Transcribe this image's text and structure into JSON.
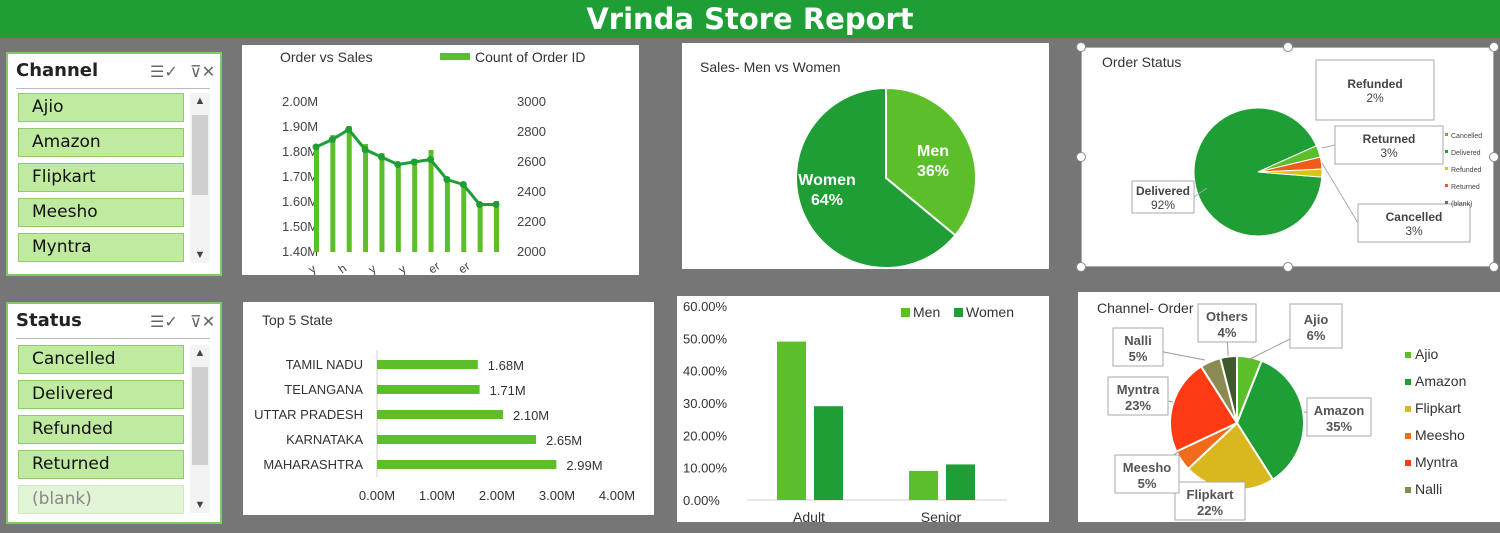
{
  "title": "Vrinda Store Report",
  "channel_slicer": {
    "heading": "Channel",
    "items": [
      "Ajio",
      "Amazon",
      "Flipkart",
      "Meesho",
      "Myntra"
    ]
  },
  "status_slicer": {
    "heading": "Status",
    "items": [
      "Cancelled",
      "Delivered",
      "Refunded",
      "Returned",
      "(blank)"
    ]
  },
  "icons": [
    "multi-select-icon",
    "clear-filter-icon",
    "scroll-up-icon",
    "scroll-down-icon"
  ],
  "colors": {
    "header": "#1e9e34",
    "light_green": "#5cbf2a",
    "dark_green": "#1e9e34",
    "background": "#767676"
  },
  "chart_data": [
    {
      "id": "order_vs_sales",
      "type": "line",
      "title": "Order vs Sales",
      "legend": "Count of Order ID",
      "y_left_ticks": [
        "2.00M",
        "1.90M",
        "1.80M",
        "1.70M",
        "1.60M",
        "1.50M",
        "1.40M"
      ],
      "y_right_ticks": [
        "3000",
        "2800",
        "2600",
        "2400",
        "2200",
        "2000"
      ],
      "x_tick_fragments": [
        "y",
        "h",
        "y",
        "y",
        "er",
        "er"
      ],
      "sales_m": [
        1.82,
        1.85,
        1.89,
        1.81,
        1.78,
        1.75,
        1.76,
        1.77,
        1.69,
        1.67,
        1.59,
        1.59
      ],
      "orders": [
        2700,
        2780,
        2840,
        2720,
        2660,
        2580,
        2620,
        2680,
        2500,
        2460,
        2320,
        2340
      ]
    },
    {
      "id": "sales_men_women",
      "type": "pie",
      "title": "Sales- Men vs Women",
      "slices": [
        {
          "name": "Men",
          "value": 36,
          "label": "36%"
        },
        {
          "name": "Women",
          "value": 64,
          "label": "64%"
        }
      ]
    },
    {
      "id": "order_status",
      "type": "pie",
      "title": "Order Status",
      "slices": [
        {
          "name": "Delivered",
          "value": 92,
          "label": "92%"
        },
        {
          "name": "Cancelled",
          "value": 3,
          "label": "3%"
        },
        {
          "name": "Returned",
          "value": 3,
          "label": "3%"
        },
        {
          "name": "Refunded",
          "value": 2,
          "label": "2%"
        }
      ],
      "legend": [
        "Cancelled",
        "Delivered",
        "Refunded",
        "Returned",
        "(blank)"
      ]
    },
    {
      "id": "top5_state",
      "type": "bar",
      "title": "Top 5 State",
      "categories": [
        "TAMIL NADU",
        "TELANGANA",
        "UTTAR PRADESH",
        "KARNATAKA",
        "MAHARASHTRA"
      ],
      "values": [
        1.68,
        1.71,
        2.1,
        2.65,
        2.99
      ],
      "labels": [
        "1.68M",
        "1.71M",
        "2.10M",
        "2.65M",
        "2.99M"
      ],
      "x_ticks": [
        "0.00M",
        "1.00M",
        "2.00M",
        "3.00M",
        "4.00M"
      ],
      "xlim": [
        0,
        4
      ]
    },
    {
      "id": "age_gender",
      "type": "bar",
      "categories": [
        "Adult",
        "Senior"
      ],
      "series": [
        {
          "name": "Men",
          "values": [
            49,
            9
          ]
        },
        {
          "name": "Women",
          "values": [
            29,
            11
          ]
        }
      ],
      "y_ticks": [
        "60.00%",
        "50.00%",
        "40.00%",
        "30.00%",
        "20.00%",
        "10.00%",
        "0.00%"
      ],
      "ylim": [
        0,
        60
      ]
    },
    {
      "id": "channel_orders",
      "type": "pie",
      "title": "Channel- Order",
      "slices": [
        {
          "name": "Ajio",
          "value": 6,
          "label": "6%"
        },
        {
          "name": "Amazon",
          "value": 35,
          "label": "35%"
        },
        {
          "name": "Flipkart",
          "value": 22,
          "label": "22%"
        },
        {
          "name": "Meesho",
          "value": 5,
          "label": "5%"
        },
        {
          "name": "Myntra",
          "value": 23,
          "label": "23%"
        },
        {
          "name": "Nalli",
          "value": 5,
          "label": "5%"
        },
        {
          "name": "Others",
          "value": 4,
          "label": "4%"
        }
      ],
      "legend": [
        "Ajio",
        "Amazon",
        "Flipkart",
        "Meesho",
        "Myntra",
        "Nalli"
      ]
    }
  ]
}
